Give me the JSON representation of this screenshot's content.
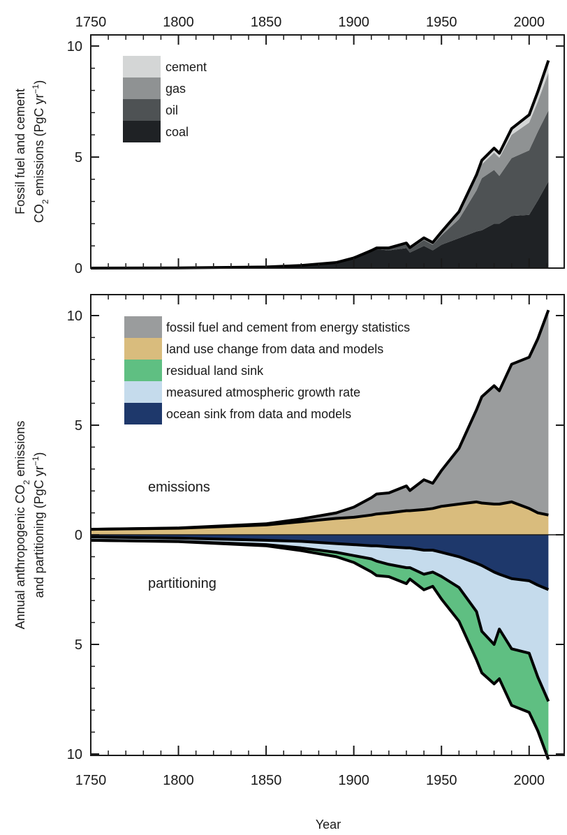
{
  "chart_data": [
    {
      "type": "area",
      "stacked": true,
      "ylabel_line1": "Fossil fuel and cement",
      "ylabel_line2_pre": "CO",
      "ylabel_line2_sub": "2",
      "ylabel_line2_post": " emissions (PgC yr",
      "ylabel_line2_sup": "−1",
      "ylabel_line2_end": ")",
      "xlim": [
        1750,
        2020
      ],
      "ylim": [
        0,
        10.5
      ],
      "xticks": [
        "1750",
        "1800",
        "1850",
        "1900",
        "1950",
        "2000"
      ],
      "yticks": [
        "0",
        "5",
        "10"
      ],
      "legend_position": "top-left",
      "x": [
        1750,
        1800,
        1850,
        1870,
        1890,
        1900,
        1910,
        1913,
        1920,
        1930,
        1932,
        1940,
        1945,
        1950,
        1960,
        1970,
        1973,
        1980,
        1983,
        1990,
        2000,
        2005,
        2011
      ],
      "series": [
        {
          "name": "coal",
          "color": "#1f2225",
          "values": [
            0.0,
            0.01,
            0.05,
            0.12,
            0.25,
            0.45,
            0.75,
            0.85,
            0.8,
            0.9,
            0.7,
            1.0,
            0.8,
            1.05,
            1.35,
            1.65,
            1.7,
            2.0,
            2.0,
            2.35,
            2.4,
            3.05,
            3.9
          ]
        },
        {
          "name": "oil",
          "color": "#4e5254",
          "values": [
            0.0,
            0.0,
            0.0,
            0.0,
            0.0,
            0.01,
            0.03,
            0.04,
            0.08,
            0.16,
            0.15,
            0.26,
            0.25,
            0.42,
            0.85,
            1.85,
            2.35,
            2.42,
            2.15,
            2.6,
            2.9,
            3.1,
            3.2
          ]
        },
        {
          "name": "gas",
          "color": "#8f9293",
          "values": [
            0.0,
            0.0,
            0.0,
            0.0,
            0.0,
            0.0,
            0.01,
            0.02,
            0.02,
            0.05,
            0.05,
            0.07,
            0.08,
            0.11,
            0.25,
            0.55,
            0.62,
            0.78,
            0.82,
            1.05,
            1.25,
            1.35,
            1.7
          ]
        },
        {
          "name": "cement",
          "color": "#d4d6d6",
          "values": [
            0.0,
            0.0,
            0.0,
            0.0,
            0.0,
            0.0,
            0.0,
            0.0,
            0.01,
            0.02,
            0.02,
            0.03,
            0.02,
            0.05,
            0.09,
            0.15,
            0.18,
            0.2,
            0.2,
            0.28,
            0.35,
            0.45,
            0.55
          ]
        }
      ]
    },
    {
      "type": "area",
      "stacked": true,
      "ylabel_line1_pre": "Annual anthropogenic CO",
      "ylabel_line1_sub": "2",
      "ylabel_line1_post": " emissions",
      "ylabel_line2_pre": "and partitioning (PgC yr",
      "ylabel_line2_sup": "−1",
      "ylabel_line2_end": ")",
      "xlabel": "Year",
      "xlim": [
        1750,
        2020
      ],
      "ylim": [
        -11,
        11
      ],
      "xticks": [
        "1750",
        "1800",
        "1850",
        "1900",
        "1950",
        "2000"
      ],
      "yticks_top": [
        "10",
        "5",
        "0"
      ],
      "yticks_bottom": [
        "5",
        "10"
      ],
      "legend_position": "top-left",
      "annotation_emissions": "emissions",
      "annotation_partitioning": "partitioning",
      "x": [
        1750,
        1800,
        1850,
        1870,
        1890,
        1900,
        1910,
        1913,
        1920,
        1930,
        1932,
        1940,
        1945,
        1950,
        1960,
        1970,
        1973,
        1980,
        1983,
        1990,
        2000,
        2005,
        2011
      ],
      "emissions": [
        {
          "name": "land use change from data and models",
          "color": "#d9bc7d",
          "values": [
            0.25,
            0.3,
            0.45,
            0.6,
            0.75,
            0.8,
            0.9,
            0.95,
            1.0,
            1.1,
            1.1,
            1.15,
            1.2,
            1.3,
            1.4,
            1.5,
            1.45,
            1.4,
            1.4,
            1.5,
            1.2,
            1.0,
            0.9
          ]
        },
        {
          "name": "fossil fuel and cement from energy statistics",
          "color": "#9a9c9d",
          "values": [
            0.0,
            0.01,
            0.05,
            0.12,
            0.25,
            0.46,
            0.79,
            0.91,
            0.91,
            1.13,
            0.92,
            1.36,
            1.15,
            1.63,
            2.54,
            4.2,
            4.85,
            5.4,
            5.17,
            6.28,
            6.9,
            7.95,
            9.35
          ]
        }
      ],
      "partitioning": [
        {
          "name": "ocean sink from data and models",
          "color": "#1e386b",
          "values": [
            0.1,
            0.15,
            0.25,
            0.3,
            0.4,
            0.45,
            0.5,
            0.5,
            0.55,
            0.6,
            0.6,
            0.7,
            0.7,
            0.8,
            1.0,
            1.3,
            1.4,
            1.7,
            1.8,
            2.0,
            2.1,
            2.3,
            2.5
          ]
        },
        {
          "name": "measured atmospheric growth rate",
          "color": "#c5dbec",
          "values": [
            0.15,
            0.15,
            0.2,
            0.3,
            0.4,
            0.5,
            0.6,
            0.7,
            0.8,
            0.9,
            0.9,
            1.1,
            1.0,
            1.1,
            1.4,
            2.2,
            3.0,
            3.3,
            2.5,
            3.2,
            3.3,
            4.2,
            5.1
          ]
        },
        {
          "name": "residual land sink",
          "color": "#5fbf82",
          "values": [
            0.0,
            0.01,
            0.05,
            0.12,
            0.2,
            0.31,
            0.59,
            0.66,
            0.56,
            0.73,
            0.52,
            0.71,
            0.65,
            1.03,
            1.54,
            2.2,
            1.9,
            1.8,
            2.27,
            2.58,
            2.7,
            2.45,
            2.65
          ]
        }
      ]
    }
  ]
}
